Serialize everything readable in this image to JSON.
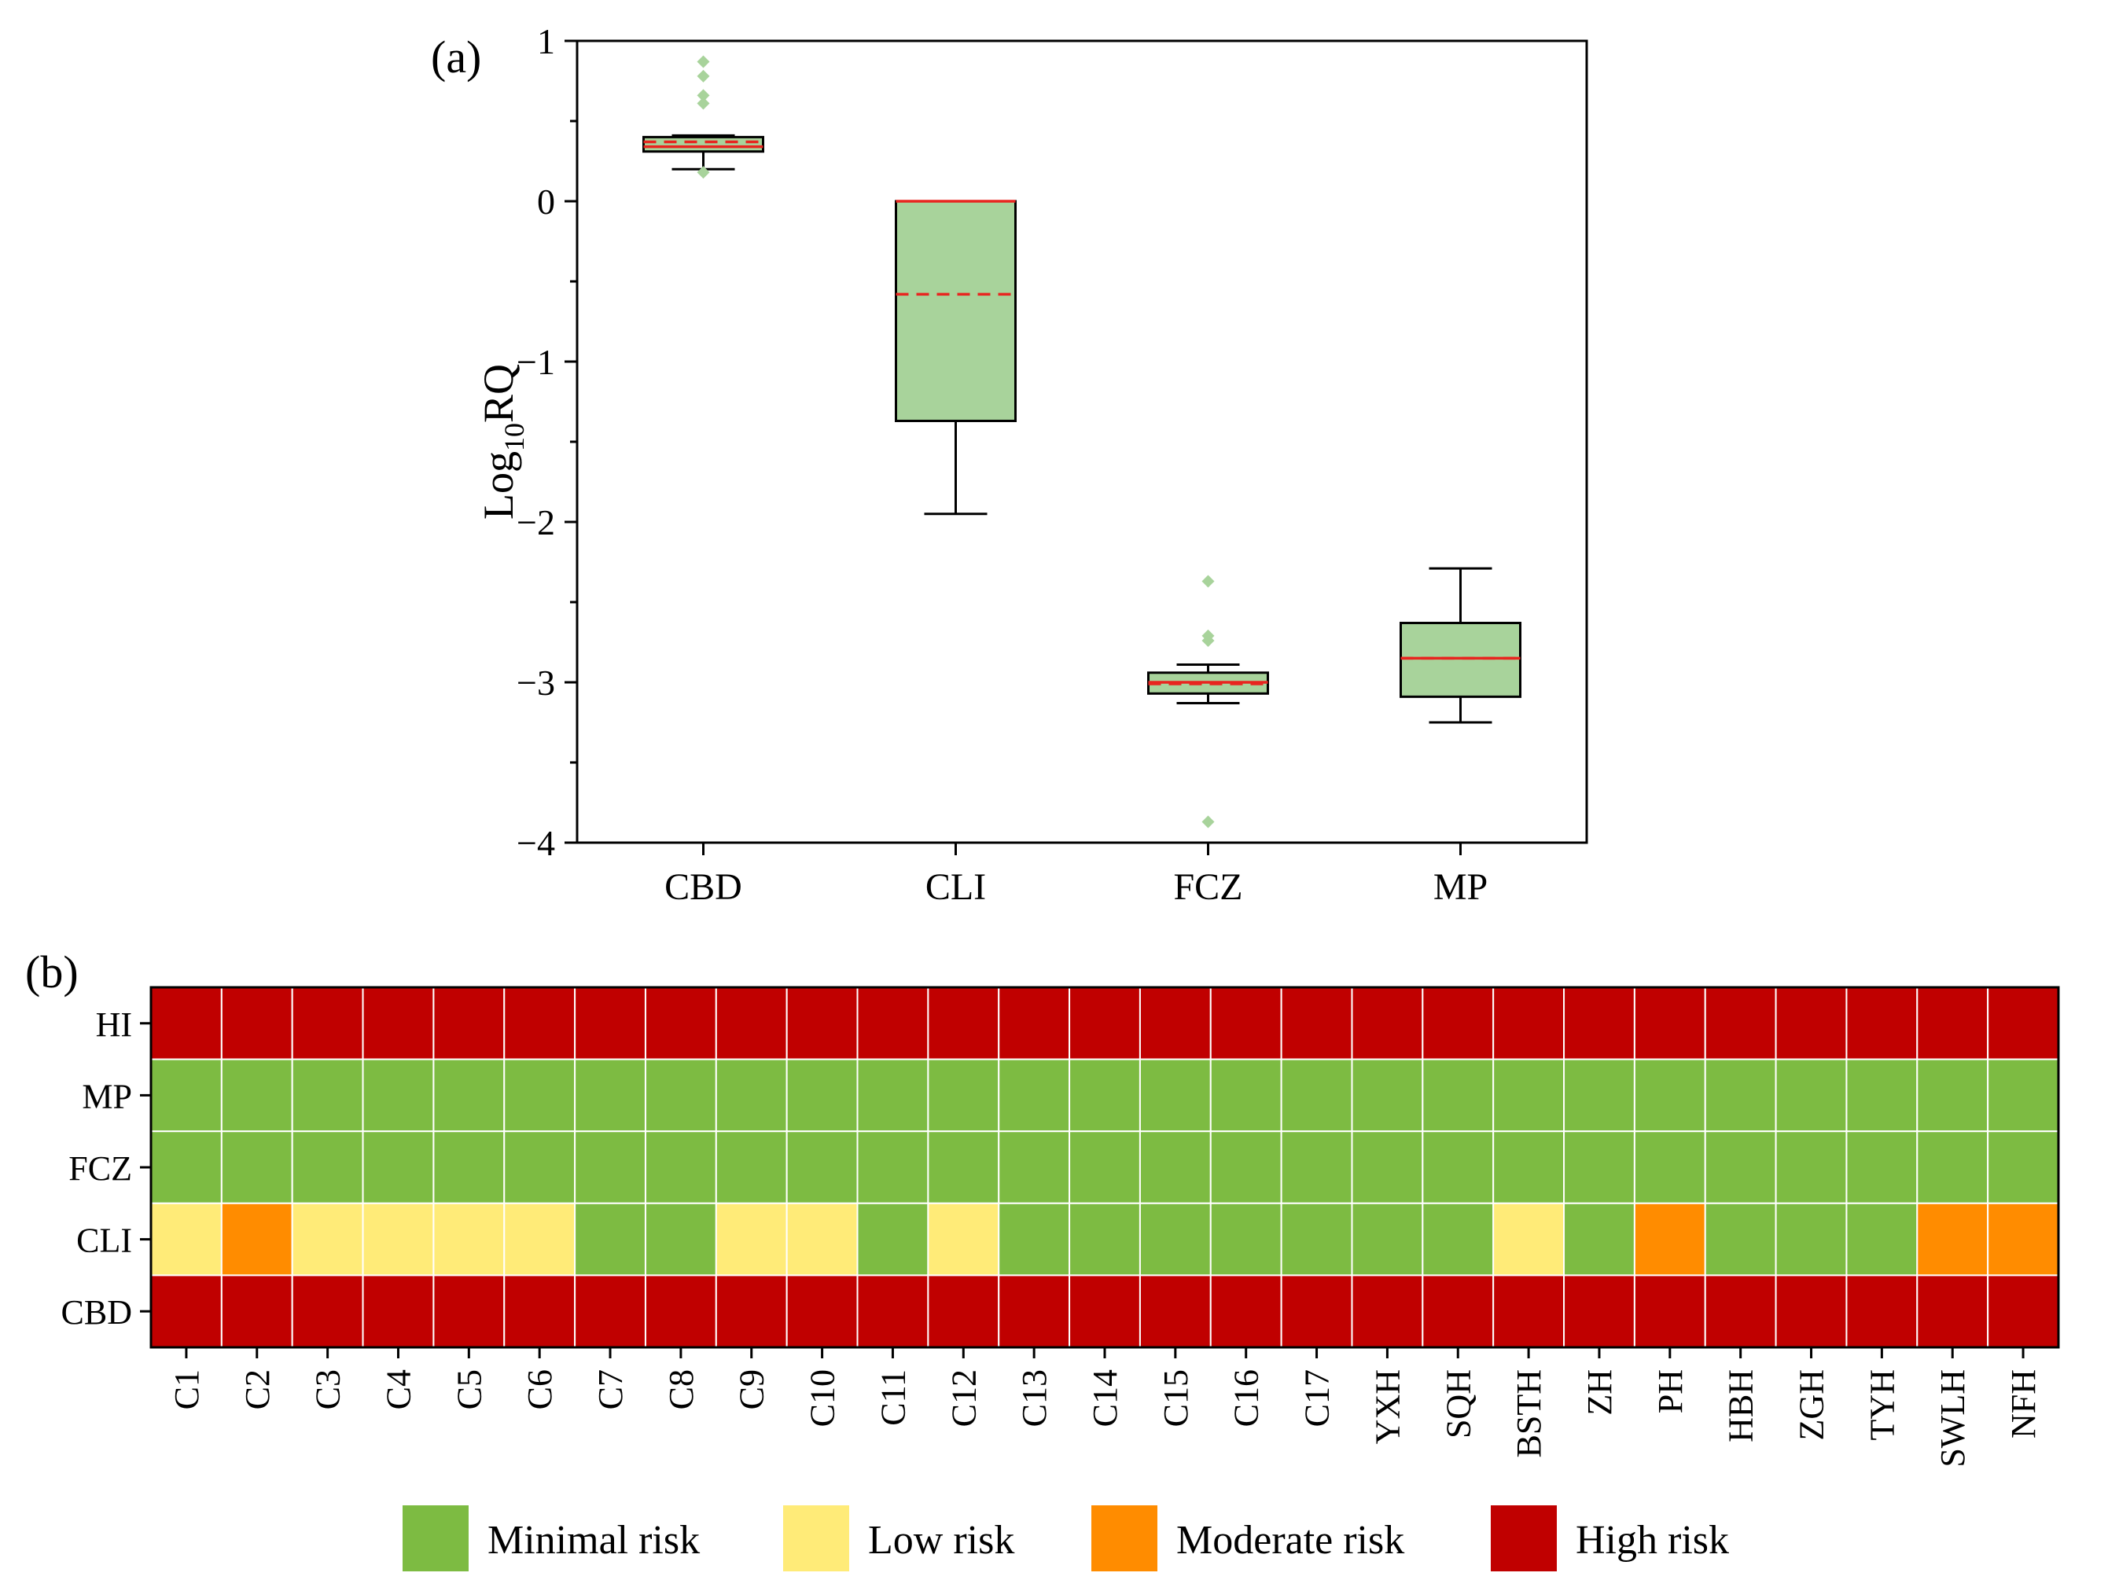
{
  "panel_a": {
    "label": "(a)",
    "ylabel_main": "Log",
    "ylabel_sub": "10",
    "ylabel_tail": "RQ"
  },
  "panel_b": {
    "label": "(b)"
  },
  "legend": [
    {
      "label": "Minimal risk",
      "color": "#7dbb42"
    },
    {
      "label": "Low risk",
      "color": "#ffeb78"
    },
    {
      "label": "Moderate risk",
      "color": "#ff8c00"
    },
    {
      "label": "High risk",
      "color": "#c00000"
    }
  ],
  "chart_data": [
    {
      "type": "box",
      "title": "",
      "xlabel": "",
      "ylabel": "Log10RQ",
      "ylim": [
        -4,
        1
      ],
      "yticks": [
        1,
        0,
        -1,
        -2,
        -3,
        -4
      ],
      "ytick_labels": [
        "1",
        "0",
        "−1",
        "−2",
        "−3",
        "−4"
      ],
      "grid": false,
      "box_color": "#a8d39b",
      "median_color": "#e8251f",
      "outlier_color": "#a8d39b",
      "categories": [
        "CBD",
        "CLI",
        "FCZ",
        "MP"
      ],
      "boxes": [
        {
          "name": "CBD",
          "whisker_low": 0.2,
          "q1": 0.31,
          "median": 0.34,
          "mean": 0.37,
          "q3": 0.4,
          "whisker_high": 0.41,
          "outliers": [
            0.87,
            0.78,
            0.66,
            0.61,
            0.18
          ]
        },
        {
          "name": "CLI",
          "whisker_low": -1.95,
          "q1": -1.37,
          "median": 0.0,
          "mean": -0.58,
          "q3": 0.0,
          "whisker_high": 0.0,
          "outliers": []
        },
        {
          "name": "FCZ",
          "whisker_low": -3.13,
          "q1": -3.07,
          "median": -3.0,
          "mean": -3.01,
          "q3": -2.94,
          "whisker_high": -2.89,
          "outliers": [
            -2.37,
            -2.71,
            -2.74,
            -3.87
          ]
        },
        {
          "name": "MP",
          "whisker_low": -3.25,
          "q1": -3.09,
          "median": -2.85,
          "mean": -2.85,
          "q3": -2.63,
          "whisker_high": -2.29,
          "outliers": []
        }
      ]
    },
    {
      "type": "heatmap",
      "title": "",
      "rows": [
        "HI",
        "MP",
        "FCZ",
        "CLI",
        "CBD"
      ],
      "columns": [
        "C1",
        "C2",
        "C3",
        "C4",
        "C5",
        "C6",
        "C7",
        "C8",
        "C9",
        "C10",
        "C11",
        "C12",
        "C13",
        "C14",
        "C15",
        "C16",
        "C17",
        "YXH",
        "SQH",
        "BSTH",
        "ZH",
        "PH",
        "HBH",
        "ZGH",
        "TYH",
        "SWLH",
        "NFH"
      ],
      "categories": [
        "Minimal risk",
        "Low risk",
        "Moderate risk",
        "High risk"
      ],
      "values": [
        [
          3,
          3,
          3,
          3,
          3,
          3,
          3,
          3,
          3,
          3,
          3,
          3,
          3,
          3,
          3,
          3,
          3,
          3,
          3,
          3,
          3,
          3,
          3,
          3,
          3,
          3,
          3
        ],
        [
          0,
          0,
          0,
          0,
          0,
          0,
          0,
          0,
          0,
          0,
          0,
          0,
          0,
          0,
          0,
          0,
          0,
          0,
          0,
          0,
          0,
          0,
          0,
          0,
          0,
          0,
          0
        ],
        [
          0,
          0,
          0,
          0,
          0,
          0,
          0,
          0,
          0,
          0,
          0,
          0,
          0,
          0,
          0,
          0,
          0,
          0,
          0,
          0,
          0,
          0,
          0,
          0,
          0,
          0,
          0
        ],
        [
          1,
          2,
          1,
          1,
          1,
          1,
          0,
          0,
          1,
          1,
          0,
          1,
          0,
          0,
          0,
          0,
          0,
          0,
          0,
          1,
          0,
          2,
          0,
          0,
          0,
          2,
          2
        ],
        [
          3,
          3,
          3,
          3,
          3,
          3,
          3,
          3,
          3,
          3,
          3,
          3,
          3,
          3,
          3,
          3,
          3,
          3,
          3,
          3,
          3,
          3,
          3,
          3,
          3,
          3,
          3
        ]
      ],
      "legend_position": "bottom"
    }
  ]
}
